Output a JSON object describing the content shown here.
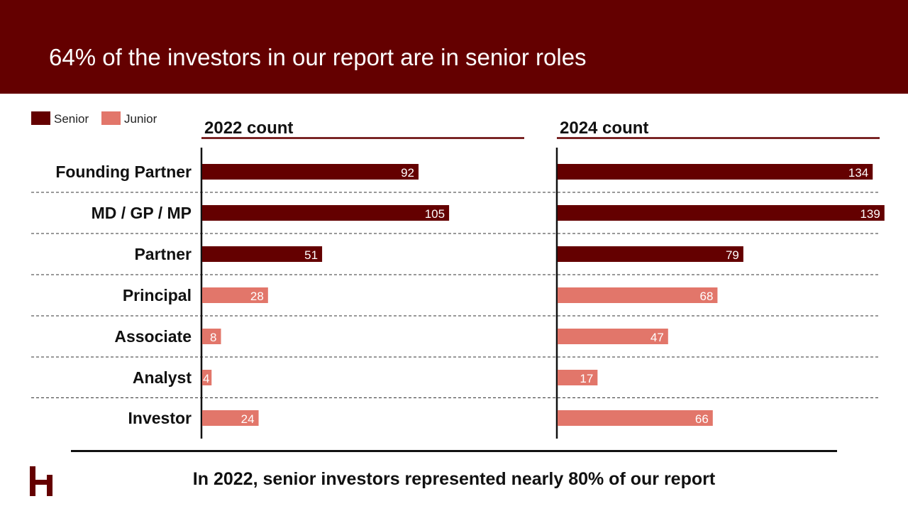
{
  "slide": {
    "title": "64% of the investors in our report are in senior roles",
    "footer": "In 2022, senior investors represented nearly 80% of our report"
  },
  "legend": [
    {
      "label": "Senior",
      "color": "#640000"
    },
    {
      "label": "Junior",
      "color": "#e2766a"
    }
  ],
  "chart_data": {
    "type": "bar",
    "orientation": "horizontal",
    "categories": [
      "Founding Partner",
      "MD / GP / MP",
      "Partner",
      "Principal",
      "Associate",
      "Analyst",
      "Investor"
    ],
    "category_groups": [
      "Senior",
      "Senior",
      "Senior",
      "Junior",
      "Junior",
      "Junior",
      "Junior"
    ],
    "panels": [
      {
        "title": "2022 count",
        "values": [
          92,
          105,
          51,
          28,
          8,
          4,
          24
        ]
      },
      {
        "title": "2024 count",
        "values": [
          134,
          139,
          79,
          68,
          47,
          17,
          66
        ]
      }
    ],
    "xlim": [
      0,
      150
    ],
    "colors": {
      "Senior": "#640000",
      "Junior": "#e2766a"
    },
    "data_labels": true,
    "legend_position": "top-left"
  }
}
